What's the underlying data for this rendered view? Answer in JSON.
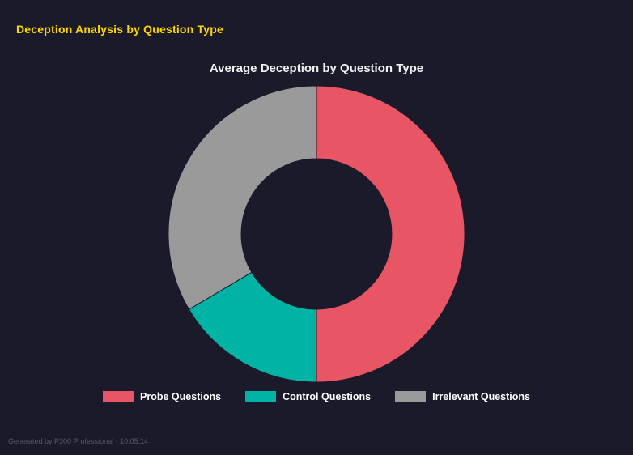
{
  "header": {
    "title": "Deception Analysis by Question Type",
    "title_color": "#ffd700"
  },
  "chart_data": {
    "type": "pie",
    "subtype": "donut",
    "title": "Average Deception by Question Type",
    "categories": [
      "Probe Questions",
      "Control Questions",
      "Irrelevant Questions"
    ],
    "values": [
      50,
      16.5,
      33.5
    ],
    "colors": [
      "#e85565",
      "#00b3a4",
      "#9a9a9a"
    ],
    "start_angle_deg": 0,
    "direction": "clockwise",
    "inner_radius_ratio": 0.51,
    "legend_position": "bottom",
    "background": "#1a1a2a"
  },
  "footer": {
    "text": "Generated by P300 Professional - 10:05:14"
  }
}
